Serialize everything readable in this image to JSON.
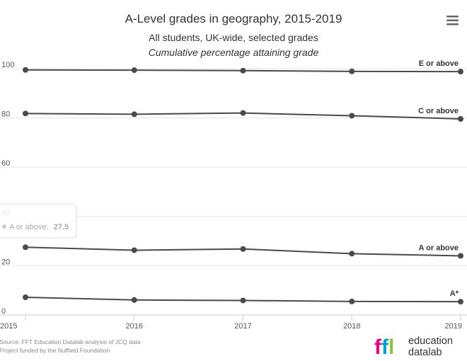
{
  "chart_data": {
    "type": "line",
    "title": "A-Level grades in geography, 2015-2019",
    "subtitle": "All students, UK-wide, selected grades",
    "subtitle2": "Cumulative percentage attaining grade",
    "x": [
      "2015",
      "2016",
      "2017",
      "2018",
      "2019"
    ],
    "y_ticks": [
      "0",
      "20",
      "40",
      "60",
      "80",
      "100"
    ],
    "ylim": [
      0,
      100
    ],
    "grid": true,
    "series": [
      {
        "name": "E or above",
        "values": [
          99.5,
          99.4,
          99.2,
          98.9,
          98.8
        ]
      },
      {
        "name": "C or above",
        "values": [
          81.8,
          81.5,
          82.0,
          80.9,
          79.6
        ]
      },
      {
        "name": "A or above",
        "values": [
          27.5,
          26.3,
          26.8,
          24.9,
          24.0
        ]
      },
      {
        "name": "A*",
        "values": [
          7.2,
          6.1,
          5.9,
          5.5,
          5.4
        ]
      }
    ],
    "line_color": "#4a4a4a",
    "tooltip": {
      "series": "A or above",
      "x": "2015",
      "label": "A or above:",
      "value": "27.5"
    }
  },
  "credits": {
    "line1": "Source: FFT Education Datalab analysis of JCQ data",
    "line2": "Project funded by the Nuffield Foundation"
  },
  "logo": {
    "mark": "ffl",
    "word1": "education",
    "word2": "datalab",
    "colors": [
      "#e6007e",
      "#00a0c6",
      "#8bc53f"
    ]
  },
  "menu": {
    "icon": "hamburger-menu-icon"
  }
}
